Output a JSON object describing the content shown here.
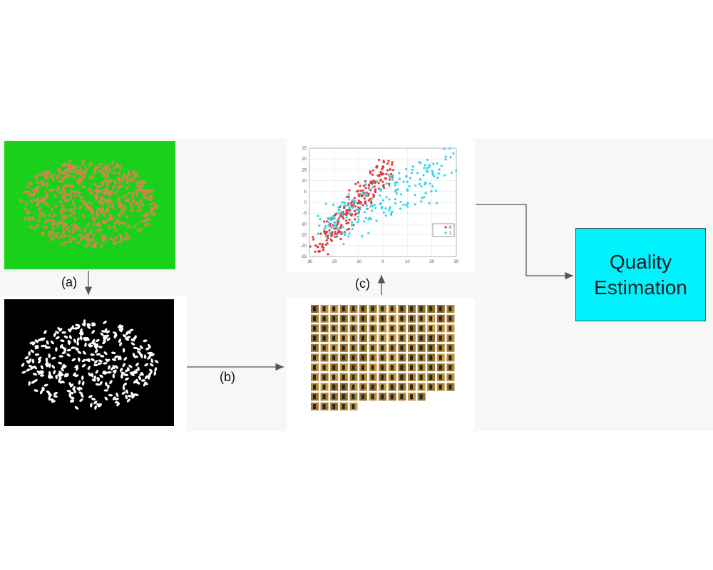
{
  "steps": {
    "a": "(a)",
    "b": "(b)",
    "c": "(c)"
  },
  "output_box": {
    "line1": "Quality",
    "line2": "Estimation",
    "color": "#00f2fc"
  },
  "chart_data": {
    "type": "scatter",
    "x_ticks": [
      "-30",
      "-20",
      "-10",
      "0",
      "10",
      "20",
      "30"
    ],
    "y_ticks": [
      "25",
      "20",
      "15",
      "10",
      "5",
      "0",
      "-5",
      "-10",
      "-15",
      "-20",
      "-25"
    ],
    "xlim": [
      -30,
      30
    ],
    "ylim": [
      -25,
      25
    ],
    "legend": [
      "0",
      "1"
    ],
    "legend_position": "right",
    "series_colors": [
      "#e03a3a",
      "#33d6e6"
    ],
    "grid": true
  },
  "colors": {
    "green_background": "#19d11a",
    "grain": "#c98a4a",
    "mask_background": "#000000",
    "crop_tile": "#b8943a"
  }
}
